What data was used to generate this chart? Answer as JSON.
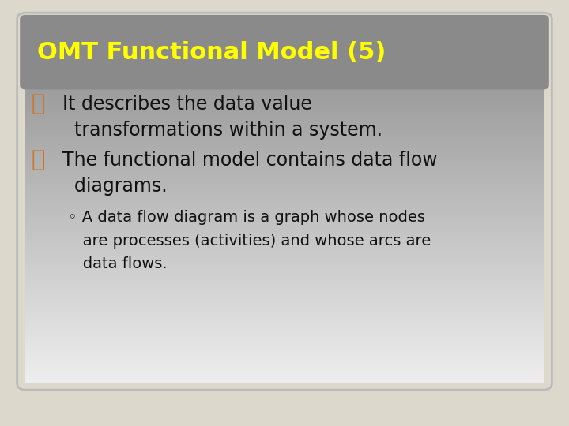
{
  "title": "OMT Functional Model (5)",
  "title_color": "#ffff00",
  "title_fontsize": 22,
  "title_fontweight": "bold",
  "bg_outer": "#ddd8cc",
  "slide_border_color": "#bbbbbb",
  "bullet_color": "#cc7722",
  "bullet_char": "௸",
  "bullet1_line1": "It describes the data value",
  "bullet1_line2": "  transformations within a system.",
  "bullet2_line1": "The functional model contains data flow",
  "bullet2_line2": "  diagrams.",
  "sub1_line1": "◦ A data flow diagram is a graph whose nodes",
  "sub1_line2": "   are processes (activities) and whose arcs are",
  "sub1_line3": "   data flows.",
  "body_color": "#111111",
  "body_fontsize": 17,
  "sub_fontsize": 14,
  "grad_top": "#8a8a8a",
  "grad_bottom": "#e8e8e8"
}
